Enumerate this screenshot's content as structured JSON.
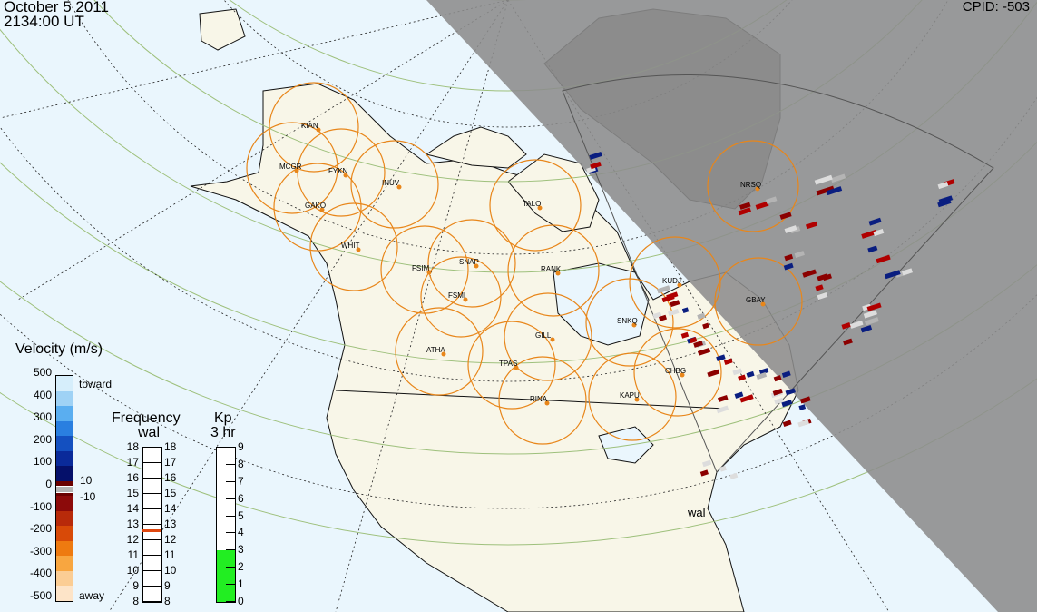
{
  "header": {
    "date": "October  5 2011",
    "time": "2134:00 UT",
    "cpid_label": "CPID:",
    "cpid_value": "-503"
  },
  "stations": [
    {
      "code": "KIAN"
    },
    {
      "code": "MCGR"
    },
    {
      "code": "FYKN"
    },
    {
      "code": "INUV"
    },
    {
      "code": "GAKO"
    },
    {
      "code": "WHIT"
    },
    {
      "code": "TALO"
    },
    {
      "code": "NRSQ"
    },
    {
      "code": "FSIM"
    },
    {
      "code": "SNAP"
    },
    {
      "code": "FSMI"
    },
    {
      "code": "RANK"
    },
    {
      "code": "KUDJ"
    },
    {
      "code": "GBAY"
    },
    {
      "code": "SNKQ"
    },
    {
      "code": "ATHA"
    },
    {
      "code": "GILL"
    },
    {
      "code": "TPAS"
    },
    {
      "code": "CHBG"
    },
    {
      "code": "KAPU"
    },
    {
      "code": "RINA"
    }
  ],
  "radar_label": "wal",
  "velocity_legend": {
    "title": "Velocity (m/s)",
    "ticks": [
      "500",
      "400",
      "300",
      "200",
      "100",
      "0",
      "-100",
      "-200",
      "-300",
      "-400",
      "-500"
    ],
    "toward_label": "toward",
    "away_label": "away",
    "gs_plus": "10",
    "gs_minus": "-10",
    "colors": [
      "#d6eefb",
      "#9fd2f5",
      "#5aaef0",
      "#2a7fe0",
      "#1450c0",
      "#0a2a9a",
      "#05106a",
      "#6a0000",
      "#8c0a0a",
      "#b82a0a",
      "#d84a08",
      "#ee7a10",
      "#f8a640",
      "#fbcd94",
      "#fde4c8"
    ]
  },
  "frequency_legend": {
    "title": "Frequency",
    "subtitle": "wal",
    "ticks": [
      "18",
      "17",
      "16",
      "15",
      "14",
      "13",
      "12",
      "11",
      "10",
      "9",
      "8"
    ],
    "current": 12.6
  },
  "kp_legend": {
    "title": "Kp",
    "subtitle": "3 hr",
    "ticks": [
      "9",
      "8",
      "7",
      "6",
      "5",
      "4",
      "3",
      "2",
      "1",
      "0"
    ],
    "value": 3,
    "fill_color": "#22ee22"
  },
  "colors": {
    "ocean": "#eaf6fd",
    "land": "#f8f6e8",
    "night_shade": "#8c8c8c",
    "fov_circle": "#e8861a",
    "latitude_line": "#9ec07c",
    "away_dark": "#8b0000",
    "toward_dark": "#0a1e80",
    "ground_scatter": "#b4b4b4"
  }
}
